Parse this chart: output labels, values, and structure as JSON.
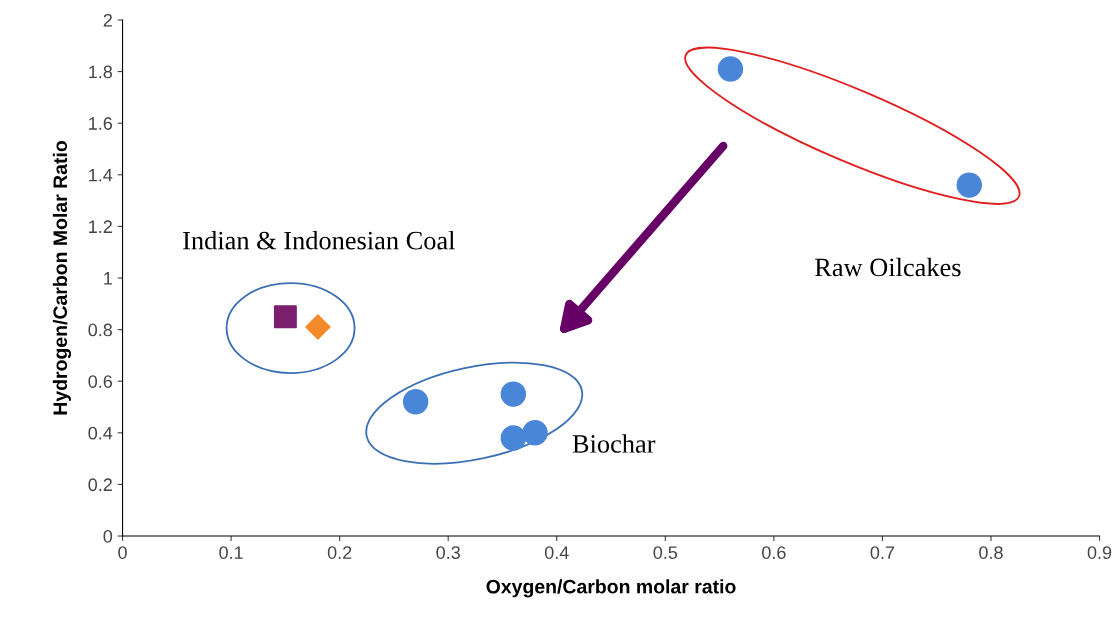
{
  "chart_data": {
    "type": "scatter",
    "xlabel": "Oxygen/Carbon molar ratio",
    "ylabel": "Hydrogen/Carbon Molar Ratio",
    "xlim": [
      0,
      0.9
    ],
    "xticks": [
      0,
      0.1,
      0.2,
      0.3,
      0.4,
      0.5,
      0.6,
      0.7,
      0.8,
      0.9
    ],
    "ylim": [
      0,
      2
    ],
    "yticks": [
      0,
      0.2,
      0.4,
      0.6,
      0.8,
      1,
      1.2,
      1.4,
      1.6,
      1.8,
      2
    ],
    "grid": false,
    "legend": false,
    "series": [
      {
        "color": "#4a86d8",
        "marker": "circle",
        "x": [
          0.56,
          0.78,
          0.27,
          0.36,
          0.36,
          0.38
        ],
        "values": [
          1.81,
          1.36,
          0.52,
          0.55,
          0.38,
          0.4
        ]
      },
      {
        "color": "#7b1f6f",
        "marker": "square",
        "x": [
          0.15
        ],
        "values": [
          0.85
        ]
      },
      {
        "color": "#f58a2a",
        "marker": "diamond",
        "x": [
          0.18
        ],
        "values": [
          0.81
        ]
      }
    ],
    "annotations": [
      "Indian & Indonesian Coal",
      "Raw Oilcakes",
      "Biochar"
    ]
  }
}
